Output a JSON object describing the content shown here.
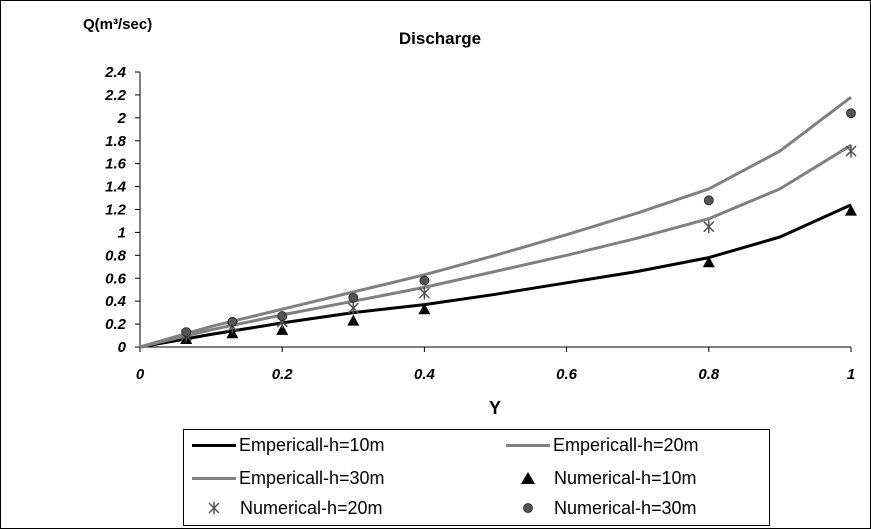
{
  "chart_data": {
    "type": "line",
    "title": "Discharge",
    "ylabel": "Q(m³/sec)",
    "xlabel": "Y",
    "xlim": [
      0,
      1
    ],
    "ylim": [
      0,
      2.4
    ],
    "x_ticks": [
      "0",
      "0.2",
      "0.4",
      "0.6",
      "0.8",
      "1"
    ],
    "y_ticks": [
      "0",
      "0.2",
      "0.4",
      "0.6",
      "0.8",
      "1",
      "1.2",
      "1.4",
      "1.6",
      "1.8",
      "2",
      "2.2",
      "2.4"
    ],
    "grid": false,
    "legend_position": "bottom",
    "series": [
      {
        "name": "Empericall-h=10m",
        "kind": "line",
        "color": "#000000",
        "x": [
          0,
          0.1,
          0.2,
          0.3,
          0.4,
          0.5,
          0.6,
          0.7,
          0.8,
          0.9,
          1.0
        ],
        "y": [
          0,
          0.11,
          0.21,
          0.3,
          0.37,
          0.46,
          0.56,
          0.66,
          0.78,
          0.96,
          1.24
        ]
      },
      {
        "name": "Empericall-h=20m",
        "kind": "line",
        "color": "#808080",
        "x": [
          0,
          0.1,
          0.2,
          0.3,
          0.4,
          0.5,
          0.6,
          0.7,
          0.8,
          0.9,
          1.0
        ],
        "y": [
          0,
          0.15,
          0.28,
          0.4,
          0.52,
          0.66,
          0.8,
          0.95,
          1.12,
          1.38,
          1.76
        ]
      },
      {
        "name": "Empericall-h=30m",
        "kind": "line",
        "color": "#808080",
        "x": [
          0,
          0.1,
          0.2,
          0.3,
          0.4,
          0.5,
          0.6,
          0.7,
          0.8,
          0.9,
          1.0
        ],
        "y": [
          0,
          0.18,
          0.33,
          0.48,
          0.63,
          0.8,
          0.98,
          1.17,
          1.38,
          1.71,
          2.18
        ]
      },
      {
        "name": "Numerical-h=10m",
        "kind": "scatter",
        "marker": "triangle",
        "color": "#000000",
        "x": [
          0.065,
          0.13,
          0.2,
          0.3,
          0.4,
          0.8,
          1.0
        ],
        "y": [
          0.07,
          0.12,
          0.15,
          0.23,
          0.33,
          0.74,
          1.19
        ]
      },
      {
        "name": "Numerical-h=20m",
        "kind": "scatter",
        "marker": "asterisk",
        "color": "#555555",
        "x": [
          0.065,
          0.13,
          0.2,
          0.3,
          0.4,
          0.8,
          1.0
        ],
        "y": [
          0.1,
          0.18,
          0.22,
          0.34,
          0.47,
          1.05,
          1.71
        ]
      },
      {
        "name": "Numerical-h=30m",
        "kind": "scatter",
        "marker": "circle",
        "color": "#555555",
        "x": [
          0.065,
          0.13,
          0.2,
          0.3,
          0.4,
          0.8,
          1.0
        ],
        "y": [
          0.13,
          0.22,
          0.27,
          0.43,
          0.58,
          1.28,
          2.04
        ]
      }
    ]
  }
}
